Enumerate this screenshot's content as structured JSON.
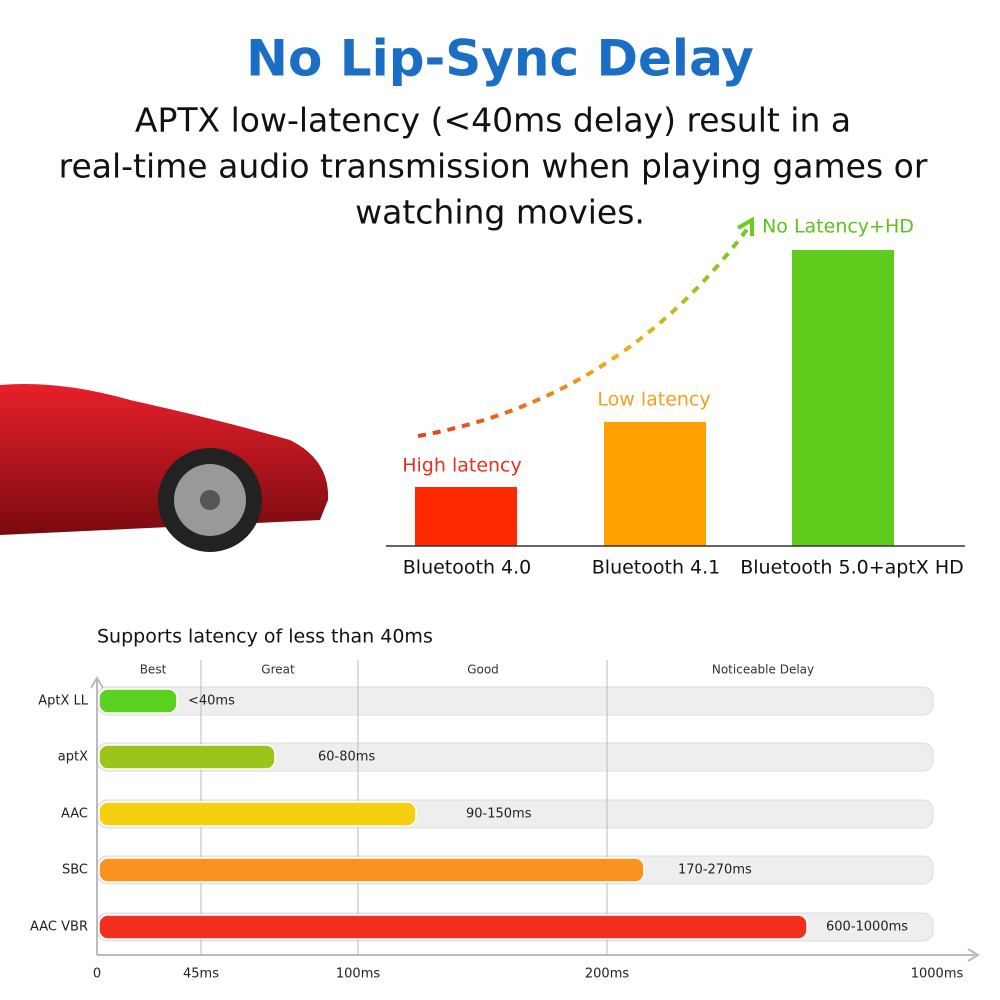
{
  "header": {
    "title": "No Lip-Sync Delay",
    "lines": [
      "APTX low-latency (<40ms delay) result in a",
      "real-time audio transmission when playing games or",
      "watching movies."
    ]
  },
  "top_chart": {
    "labels": [
      "High latency",
      "Low latency",
      "No Latency+HD"
    ],
    "categories": [
      "Bluetooth 4.0",
      "Bluetooth 4.1",
      "Bluetooth 5.0+aptX HD"
    ]
  },
  "bottom_chart": {
    "title": "Supports latency of less than 40ms",
    "zones": [
      "Best",
      "Great",
      "Good",
      "Noticeable Delay"
    ],
    "rows": [
      {
        "name": "AptX LL",
        "label": "<40ms"
      },
      {
        "name": "aptX",
        "label": "60-80ms"
      },
      {
        "name": "AAC",
        "label": "90-150ms"
      },
      {
        "name": "SBC",
        "label": "170-270ms"
      },
      {
        "name": "AAC VBR",
        "label": "600-1000ms"
      }
    ],
    "axis_labels": [
      "0",
      "45ms",
      "100ms",
      "200ms",
      "1000ms"
    ]
  }
}
